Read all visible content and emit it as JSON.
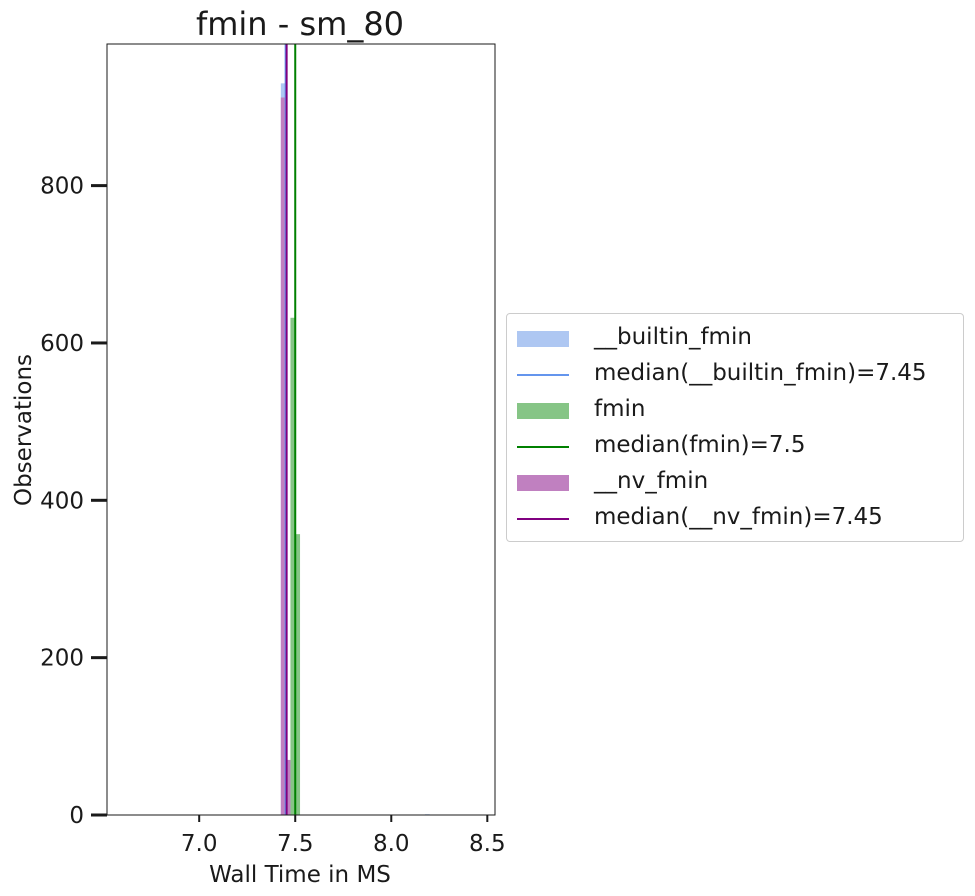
{
  "chart_data": {
    "type": "histogram",
    "title": "fmin - sm_80",
    "xlabel": "Wall Time in MS",
    "ylabel": "Observations",
    "xlim": [
      6.52,
      8.54
    ],
    "ylim": [
      0,
      980
    ],
    "xticks": [
      {
        "value": 7.0,
        "label": "7.0"
      },
      {
        "value": 7.5,
        "label": "7.5"
      },
      {
        "value": 8.0,
        "label": "8.0"
      },
      {
        "value": 8.5,
        "label": "8.5"
      }
    ],
    "yticks": [
      {
        "value": 0,
        "label": "0"
      },
      {
        "value": 200,
        "label": "200"
      },
      {
        "value": 400,
        "label": "400"
      },
      {
        "value": 600,
        "label": "600"
      },
      {
        "value": 800,
        "label": "800"
      }
    ],
    "grid": false,
    "legend_position": "right, outside plot",
    "series": [
      {
        "name": "__builtin_fmin",
        "color": "#aec7f2",
        "bins": [
          {
            "x0": 7.425,
            "x1": 7.45,
            "count": 930
          },
          {
            "x0": 7.45,
            "x1": 7.475,
            "count": 68
          },
          {
            "x0": 8.175,
            "x1": 8.2,
            "count": 1
          }
        ],
        "median": 7.45,
        "median_color": "#6495ed",
        "median_label": "median(__builtin_fmin)=7.45"
      },
      {
        "name": "fmin",
        "color": "#86c586",
        "bins": [
          {
            "x0": 7.475,
            "x1": 7.5,
            "count": 632
          },
          {
            "x0": 7.5,
            "x1": 7.525,
            "count": 357
          }
        ],
        "median": 7.5,
        "median_color": "#008000",
        "median_label": "median(fmin)=7.5"
      },
      {
        "name": "__nv_fmin",
        "color": "#c080c0",
        "bins": [
          {
            "x0": 7.425,
            "x1": 7.45,
            "count": 912
          },
          {
            "x0": 7.45,
            "x1": 7.475,
            "count": 70
          }
        ],
        "median": 7.45,
        "median_color": "#800080",
        "median_label": "median(__nv_fmin)=7.45"
      }
    ]
  }
}
